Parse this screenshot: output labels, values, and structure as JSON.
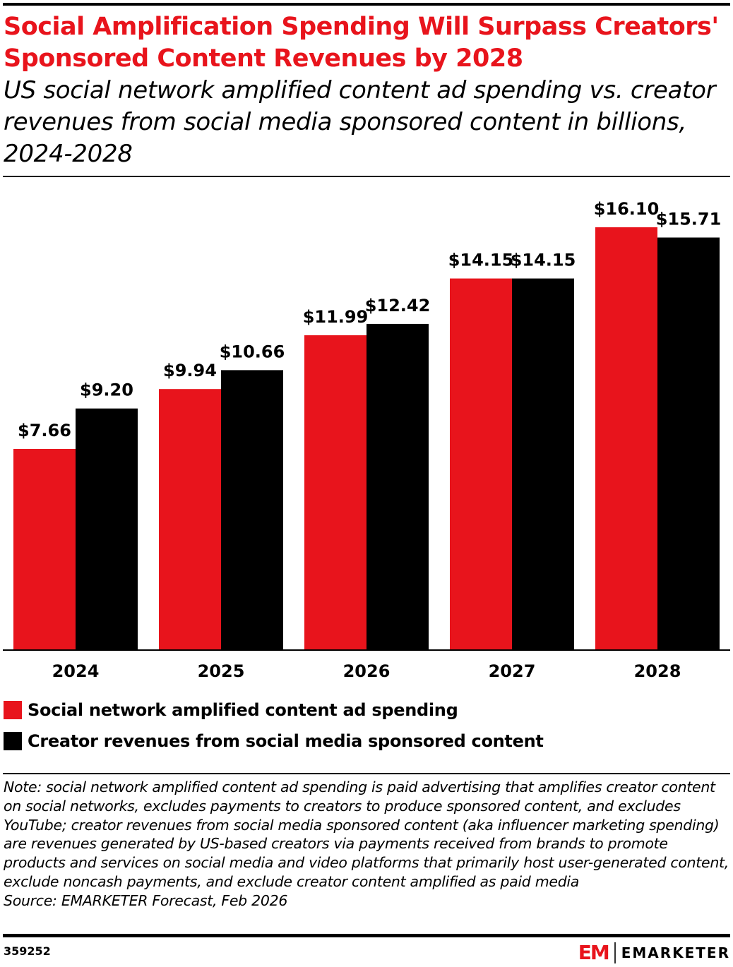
{
  "title": "Social Amplification Spending Will Surpass Creators' Sponsored Content Revenues by 2028",
  "subtitle": "US social network amplified content ad spending vs. creator revenues from social media sponsored content in billions, 2024-2028",
  "chart_data": {
    "type": "bar",
    "categories": [
      "2024",
      "2025",
      "2026",
      "2027",
      "2028"
    ],
    "series": [
      {
        "name": "Social network amplified content ad spending",
        "values": [
          7.66,
          9.94,
          11.99,
          14.15,
          16.1
        ],
        "labels": [
          "$7.66",
          "$9.94",
          "$11.99",
          "$14.15",
          "$16.10"
        ],
        "color": "#e8141c"
      },
      {
        "name": "Creator revenues from social media sponsored content",
        "values": [
          9.2,
          10.66,
          12.42,
          14.15,
          15.71
        ],
        "labels": [
          "$9.20",
          "$10.66",
          "$12.42",
          "$14.15",
          "$15.71"
        ],
        "color": "#000000"
      }
    ],
    "ylim": [
      0,
      16.1
    ],
    "grid": false,
    "legend": "bottom-left"
  },
  "note": "Note: social network amplified content ad spending is paid advertising that amplifies creator content on social networks, excludes payments to creators to produce sponsored content, and excludes YouTube; creator revenues from social media sponsored content (aka influencer marketing spending) are revenues generated by US-based creators via payments received from brands to promote products and services on social media and video platforms that primarily host user-generated content, exclude noncash payments, and exclude creator content amplified as paid media",
  "source": "Source: EMARKETER Forecast, Feb 2026",
  "chart_id": "359252",
  "logo": {
    "mark": "EM",
    "wordmark": "EMARKETER"
  }
}
